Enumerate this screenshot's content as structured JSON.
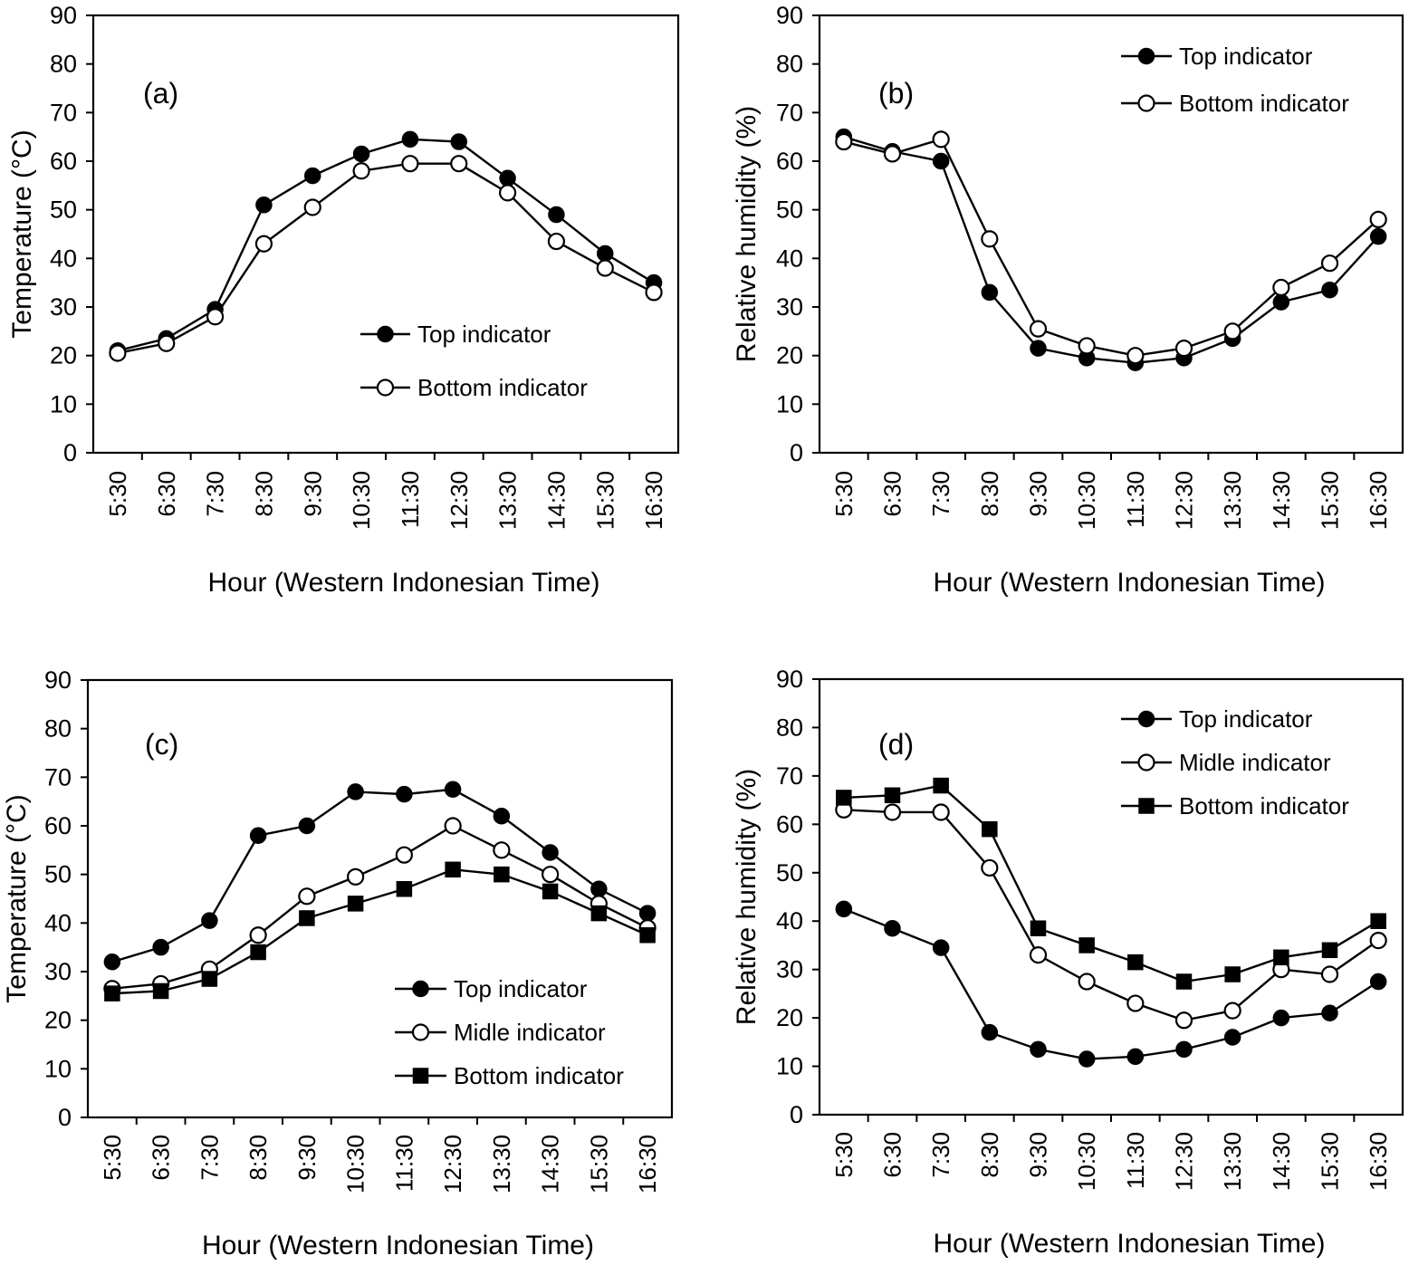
{
  "chart_data": [
    {
      "type": "line",
      "panel_label": "(a)",
      "xlabel": "Hour (Western Indonesian Time)",
      "ylabel": "Temperature (°C)",
      "ylim": [
        0,
        90
      ],
      "yticks": [
        0,
        10,
        20,
        30,
        40,
        50,
        60,
        70,
        80,
        90
      ],
      "categories": [
        "5:30",
        "6:30",
        "7:30",
        "8:30",
        "9:30",
        "10:30",
        "11:30",
        "12:30",
        "13:30",
        "14:30",
        "15:30",
        "16:30"
      ],
      "legend_position": "lower-right",
      "series": [
        {
          "name": "Top indicator",
          "marker": "filled-circle",
          "values": [
            21,
            23.5,
            29.5,
            51,
            57,
            61.5,
            64.5,
            64,
            56.5,
            49,
            41,
            35
          ]
        },
        {
          "name": "Bottom indicator",
          "marker": "open-circle",
          "values": [
            20.5,
            22.5,
            28,
            43,
            50.5,
            58,
            59.5,
            59.5,
            53.5,
            43.5,
            38,
            33
          ]
        }
      ]
    },
    {
      "type": "line",
      "panel_label": "(b)",
      "xlabel": "Hour (Western Indonesian Time)",
      "ylabel": "Relative humidity (%)",
      "ylim": [
        0,
        90
      ],
      "yticks": [
        0,
        10,
        20,
        30,
        40,
        50,
        60,
        70,
        80,
        90
      ],
      "categories": [
        "5:30",
        "6:30",
        "7:30",
        "8:30",
        "9:30",
        "10:30",
        "11:30",
        "12:30",
        "13:30",
        "14:30",
        "15:30",
        "16:30"
      ],
      "legend_position": "top-right",
      "series": [
        {
          "name": "Top indicator",
          "marker": "filled-circle",
          "values": [
            65,
            62,
            60,
            33,
            21.5,
            19.5,
            18.5,
            19.5,
            23.5,
            31,
            33.5,
            44.5
          ]
        },
        {
          "name": "Bottom indicator",
          "marker": "open-circle",
          "values": [
            64,
            61.5,
            64.5,
            44,
            25.5,
            22,
            20,
            21.5,
            25,
            34,
            39,
            48
          ]
        }
      ]
    },
    {
      "type": "line",
      "panel_label": "(c)",
      "xlabel": "Hour (Western Indonesian Time)",
      "ylabel": "Temperature (°C)",
      "ylim": [
        0,
        90
      ],
      "yticks": [
        0,
        10,
        20,
        30,
        40,
        50,
        60,
        70,
        80,
        90
      ],
      "categories": [
        "5:30",
        "6:30",
        "7:30",
        "8:30",
        "9:30",
        "10:30",
        "11:30",
        "12:30",
        "13:30",
        "14:30",
        "15:30",
        "16:30"
      ],
      "legend_position": "lower-right",
      "series": [
        {
          "name": "Top indicator",
          "marker": "filled-circle",
          "values": [
            32,
            35,
            40.5,
            58,
            60,
            67,
            66.5,
            67.5,
            62,
            54.5,
            47,
            42
          ]
        },
        {
          "name": "Midle indicator",
          "marker": "open-circle",
          "values": [
            26.5,
            27.5,
            30.5,
            37.5,
            45.5,
            49.5,
            54,
            60,
            55,
            50,
            44,
            39
          ]
        },
        {
          "name": "Bottom indicator",
          "marker": "filled-square",
          "values": [
            25.5,
            26,
            28.5,
            34,
            41,
            44,
            47,
            51,
            50,
            46.5,
            42,
            37.5
          ]
        }
      ]
    },
    {
      "type": "line",
      "panel_label": "(d)",
      "xlabel": "Hour (Western Indonesian Time)",
      "ylabel": "Relative humidity (%)",
      "ylim": [
        0,
        90
      ],
      "yticks": [
        0,
        10,
        20,
        30,
        40,
        50,
        60,
        70,
        80,
        90
      ],
      "categories": [
        "5:30",
        "6:30",
        "7:30",
        "8:30",
        "9:30",
        "10:30",
        "11:30",
        "12:30",
        "13:30",
        "14:30",
        "15:30",
        "16:30"
      ],
      "legend_position": "top-right",
      "series": [
        {
          "name": "Top indicator",
          "marker": "filled-circle",
          "values": [
            42.5,
            38.5,
            34.5,
            17,
            13.5,
            11.5,
            12,
            13.5,
            16,
            20,
            21,
            27.5
          ]
        },
        {
          "name": "Midle indicator",
          "marker": "open-circle",
          "values": [
            63,
            62.5,
            62.5,
            51,
            33,
            27.5,
            23,
            19.5,
            21.5,
            30,
            29,
            36
          ]
        },
        {
          "name": "Bottom indicator",
          "marker": "filled-square",
          "values": [
            65.5,
            66,
            68,
            59,
            38.5,
            35,
            31.5,
            27.5,
            29,
            32.5,
            34,
            40
          ]
        }
      ]
    }
  ]
}
